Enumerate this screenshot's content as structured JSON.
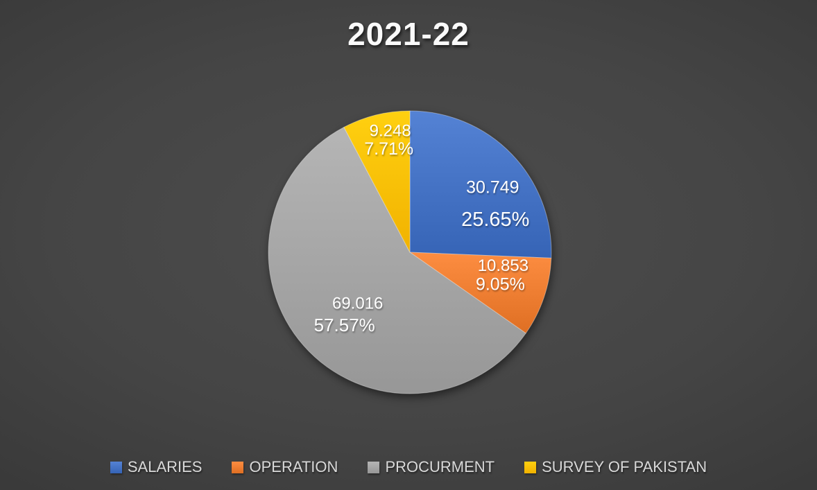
{
  "chart_data": {
    "type": "pie",
    "title": "2021-22",
    "categories": [
      "SALARIES",
      "OPERATION",
      "PROCURMENT",
      "SURVEY OF PAKISTAN"
    ],
    "values": [
      30.749,
      10.853,
      69.016,
      9.248
    ],
    "labels": [
      {
        "value": "30.749",
        "percent": "25.65%"
      },
      {
        "value": "10.853",
        "percent": "9.05%"
      },
      {
        "value": "69.016",
        "percent": "57.57%"
      },
      {
        "value": "9.248",
        "percent": "7.71%"
      }
    ],
    "colors": [
      "#4472C4",
      "#ED7D31",
      "#A5A5A5",
      "#FFC000"
    ],
    "start_angle_deg": 0,
    "direction": "clockwise",
    "legend_position": "bottom",
    "background": "dark-gray-radial-gradient",
    "text_color": "#FFFFFF",
    "legend_text_color": "#D9D9D9"
  }
}
